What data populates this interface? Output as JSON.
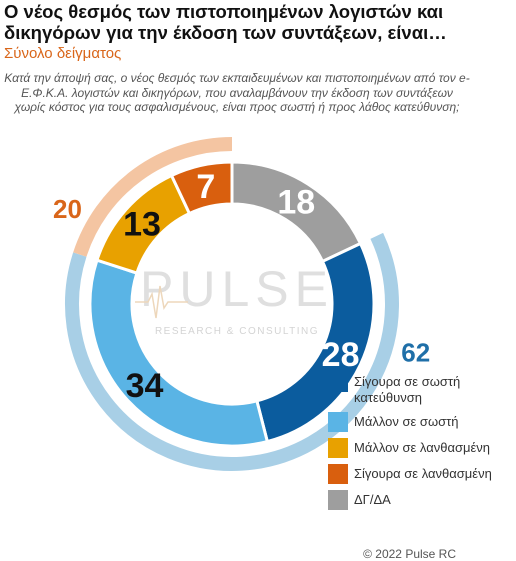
{
  "title": "Ο νέος θεσμός των πιστοποιημένων λογιστών και δικηγόρων για την έκδοση των συντάξεων, είναι…",
  "subtitle": "Σύνολο δείγματος",
  "question": "Κατά την άποψή σας, ο νέος θεσμός των εκπαιδευμένων και πιστοποιημένων από τον e-Ε.Φ.Κ.Α. λογιστών και δικηγόρων, που αναλαμβάνουν την έκδοση των συντάξεων χωρίς κόστος για τους ασφαλισμένους, είναι προς σωστή ή προς λάθος κατεύθυνση;",
  "watermark": {
    "main": "PULSE",
    "sub": "RESEARCH & CONSULTING"
  },
  "copyright": "© 2022 Pulse RC",
  "chart_data": {
    "type": "pie",
    "donut": true,
    "start_angle_deg": 0,
    "direction": "clockwise",
    "slices": [
      {
        "label": "ΔΓ/ΔΑ",
        "value": 18,
        "color": "#9e9e9e"
      },
      {
        "label": "Σίγουρα σε σωστή κατεύθυνση",
        "value": 28,
        "color": "#0b5c9e"
      },
      {
        "label": "Μάλλον σε σωστή",
        "value": 34,
        "color": "#5ab4e5"
      },
      {
        "label": "Μάλλον σε λανθασμένη",
        "value": 13,
        "color": "#e8a100"
      },
      {
        "label": "Σίγουρα σε λανθασμένη",
        "value": 7,
        "color": "#d95f0e"
      }
    ],
    "groups": [
      {
        "value": 62,
        "color": "#a8cfe6",
        "label_color": "#1f6fa8",
        "members": [
          "Σίγουρα σε σωστή κατεύθυνση",
          "Μάλλον σε σωστή"
        ]
      },
      {
        "value": 20,
        "color": "#f4c5a2",
        "label_color": "#d9661a",
        "members": [
          "Μάλλον σε λανθασμένη",
          "Σίγουρα σε λανθασμένη"
        ]
      }
    ],
    "legend": [
      {
        "label": "Σίγουρα σε σωστή κατεύθυνση",
        "color": "#0b5c9e"
      },
      {
        "label": "Μάλλον σε σωστή",
        "color": "#5ab4e5"
      },
      {
        "label": "Μάλλον σε λανθασμένη",
        "color": "#e8a100"
      },
      {
        "label": "Σίγουρα σε λανθασμένη",
        "color": "#d95f0e"
      },
      {
        "label": "ΔΓ/ΔΑ",
        "color": "#9e9e9e"
      }
    ],
    "legend_position": "bottom-right"
  }
}
